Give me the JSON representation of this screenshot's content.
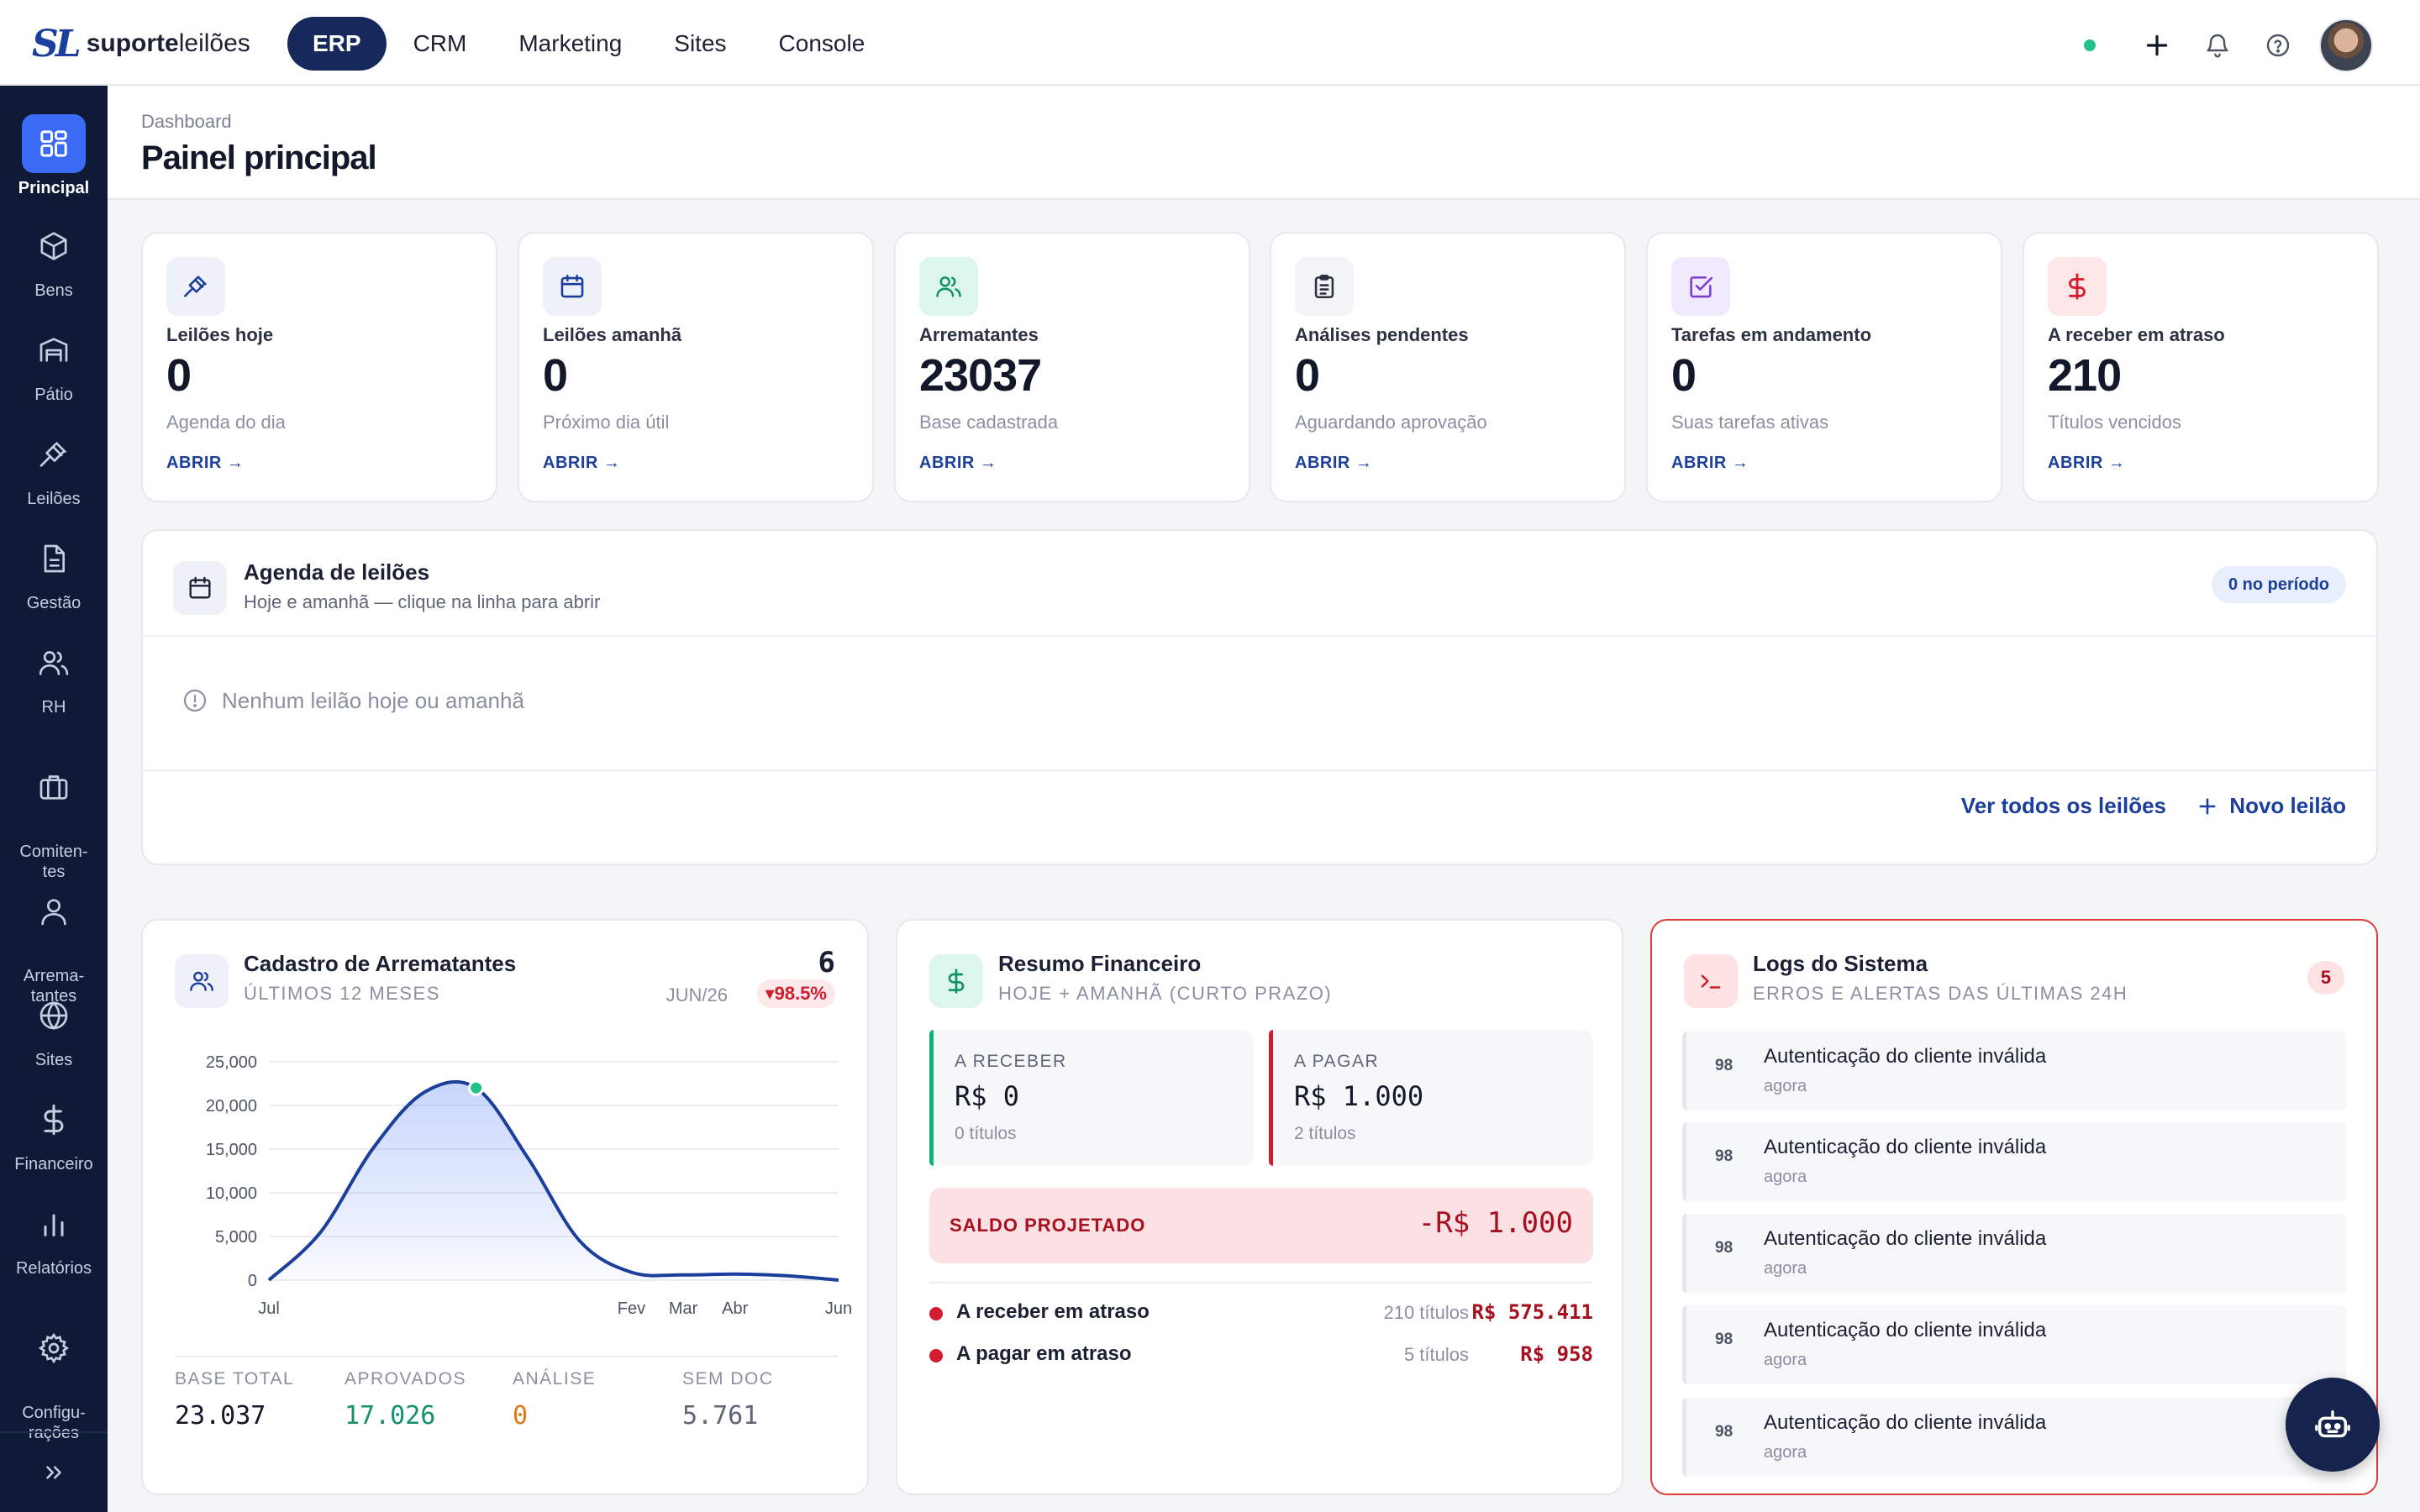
{
  "brand": {
    "mark": "SL",
    "name_bold": "suporte",
    "name_regular": "leilões"
  },
  "nav": [
    {
      "label": "ERP",
      "active": true
    },
    {
      "label": "CRM"
    },
    {
      "label": "Marketing"
    },
    {
      "label": "Sites"
    },
    {
      "label": "Console"
    }
  ],
  "sidebar": {
    "items": [
      {
        "label": "Principal",
        "icon": "grid-icon",
        "active": true
      },
      {
        "label": "Bens",
        "icon": "box-icon"
      },
      {
        "label": "Pátio",
        "icon": "warehouse-icon"
      },
      {
        "label": "Leilões",
        "icon": "gavel-icon"
      },
      {
        "label": "Gestão",
        "icon": "document-icon"
      },
      {
        "label": "RH",
        "icon": "users-icon"
      },
      {
        "label": "Comiten-\ntes",
        "icon": "briefcase-icon"
      },
      {
        "label": "Arrema-\ntantes",
        "icon": "user-icon"
      },
      {
        "label": "Sites",
        "icon": "globe-icon"
      },
      {
        "label": "Financeiro",
        "icon": "dollar-icon"
      },
      {
        "label": "Relatórios",
        "icon": "bar-chart-icon"
      },
      {
        "label": "Configu-\nrações",
        "icon": "gear-icon"
      }
    ]
  },
  "header": {
    "breadcrumb": "Dashboard",
    "title": "Painel principal"
  },
  "stats": [
    {
      "label": "Leilões hoje",
      "value": "0",
      "sub": "Agenda do dia",
      "link": "ABRIR →",
      "icon": "gavel-icon",
      "color": "#1c3f9c",
      "bg": "#eef1f8"
    },
    {
      "label": "Leilões amanhã",
      "value": "0",
      "sub": "Próximo dia útil",
      "link": "ABRIR →",
      "icon": "calendar-icon",
      "color": "#1c3f9c",
      "bg": "#eef1f8"
    },
    {
      "label": "Arrematantes",
      "value": "23037",
      "sub": "Base cadastrada",
      "link": "ABRIR →",
      "icon": "users-icon",
      "color": "#12916a",
      "bg": "#dcf6ec"
    },
    {
      "label": "Análises pendentes",
      "value": "0",
      "sub": "Aguardando aprovação",
      "link": "ABRIR →",
      "icon": "clipboard-icon",
      "color": "#2b3242",
      "bg": "#f3f4f7"
    },
    {
      "label": "Tarefas em andamento",
      "value": "0",
      "sub": "Suas tarefas ativas",
      "link": "ABRIR →",
      "icon": "check-square-icon",
      "color": "#7b3fd0",
      "bg": "#f1e9fc"
    },
    {
      "label": "A receber em atraso",
      "value": "210",
      "sub": "Títulos vencidos",
      "link": "ABRIR →",
      "icon": "dollar-icon",
      "color": "#d21c2f",
      "bg": "#fde6e8"
    }
  ],
  "agenda": {
    "title": "Agenda de leilões",
    "subtitle": "Hoje e amanhã — clique na linha para abrir",
    "badge": "0 no período",
    "empty": "Nenhum leilão hoje ou amanhã",
    "link_all": "Ver todos os leilões",
    "link_new": "Novo leilão"
  },
  "arrematantes": {
    "title": "Cadastro de Arrematantes",
    "subtitle": "ÚLTIMOS 12 MESES",
    "count": "6",
    "period": "JUN/26",
    "delta": "▾98.5%",
    "stats": [
      {
        "label": "BASE TOTAL",
        "value": "23.037",
        "color": "#121829"
      },
      {
        "label": "APROVADOS",
        "value": "17.026",
        "color": "#12916a"
      },
      {
        "label": "ANÁLISE",
        "value": "0",
        "color": "#e07a10"
      },
      {
        "label": "SEM DOC",
        "value": "5.761",
        "color": "#5f6679"
      }
    ]
  },
  "chart_data": {
    "type": "area",
    "title": "",
    "x": [
      "Jul",
      "Ago",
      "Set",
      "Out",
      "Nov",
      "Dez",
      "Jan",
      "Fev",
      "Mar",
      "Abr",
      "Mai",
      "Jun"
    ],
    "x_tick_labels": [
      "Jul",
      "Fev",
      "Mar",
      "Abr",
      "Jun"
    ],
    "series": [
      {
        "values": [
          0,
          5500,
          15000,
          21500,
          22000,
          14000,
          4500,
          900,
          600,
          700,
          500,
          6
        ]
      }
    ],
    "y_ticks": [
      "25,000",
      "20,000",
      "15,000",
      "10,000",
      "5,000",
      "0"
    ],
    "ylim": [
      0,
      25000
    ],
    "grid": true,
    "line_color": "#1c3f9c",
    "highlight_point": 4
  },
  "financeiro": {
    "title": "Resumo Financeiro",
    "subtitle": "HOJE + AMANHÃ (CURTO PRAZO)",
    "receber": {
      "label": "A RECEBER",
      "value": "R$ 0",
      "sub": "0 títulos"
    },
    "pagar": {
      "label": "A PAGAR",
      "value": "R$ 1.000",
      "sub": "2 títulos"
    },
    "saldo": {
      "label": "SALDO PROJETADO",
      "value": "-R$ 1.000"
    },
    "rows": [
      {
        "label": "A receber em atraso",
        "count": "210 títulos",
        "value": "R$ 575.411"
      },
      {
        "label": "A pagar em atraso",
        "count": "5 títulos",
        "value": "R$ 958"
      }
    ]
  },
  "logs": {
    "title": "Logs do Sistema",
    "subtitle": "ERROS E ALERTAS DAS ÚLTIMAS 24H",
    "badge": "5",
    "items": [
      {
        "code": "98",
        "message": "Autenticação do cliente inválida",
        "time": "agora"
      },
      {
        "code": "98",
        "message": "Autenticação do cliente inválida",
        "time": "agora"
      },
      {
        "code": "98",
        "message": "Autenticação do cliente inválida",
        "time": "agora"
      },
      {
        "code": "98",
        "message": "Autenticação do cliente inválida",
        "time": "agora"
      },
      {
        "code": "98",
        "message": "Autenticação do cliente inválida",
        "time": "agora"
      }
    ]
  }
}
